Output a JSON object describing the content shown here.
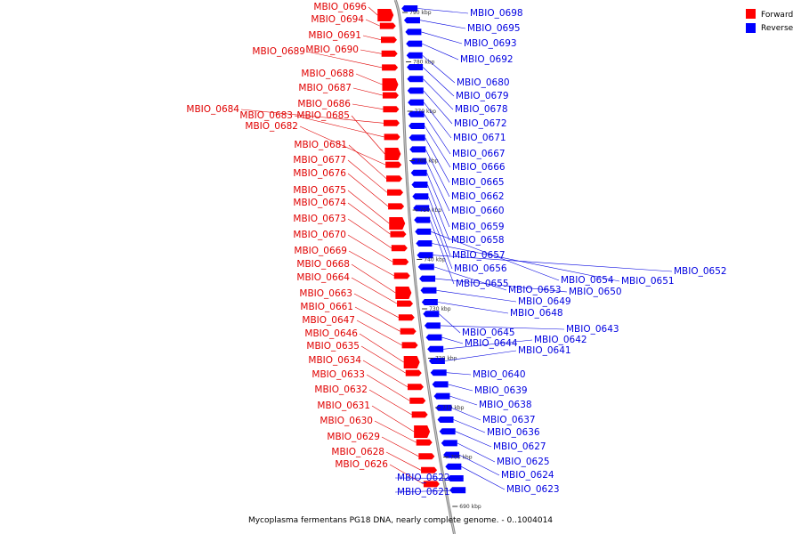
{
  "caption": "Mycoplasma fermentans PG18 DNA, nearly complete genome. - 0..1004014",
  "legend": [
    {
      "label": "Forward",
      "color": "#ff0000"
    },
    {
      "label": "Reverse",
      "color": "#0000ff"
    }
  ],
  "colors": {
    "forward": "#ff0000",
    "reverse": "#0000ff",
    "forward_text": "#e00000",
    "reverse_text": "#0000e0",
    "backbone": "#888888"
  },
  "ticks": [
    "690 kbp",
    "700 kbp",
    "710 kbp",
    "720 kbp",
    "730 kbp",
    "740 kbp",
    "750 kbp",
    "760 kbp",
    "770 kbp",
    "780 kbp",
    "790 kbp"
  ],
  "forward_genes": [
    "MBIO_0696",
    "MBIO_0694",
    "MBIO_0691",
    "MBIO_0690",
    "MBIO_0689",
    "MBIO_0688",
    "MBIO_0687",
    "MBIO_0686",
    "MBIO_0684",
    "MBIO_0683",
    "MBIO_0685",
    "MBIO_0682",
    "MBIO_0681",
    "MBIO_0677",
    "MBIO_0676",
    "MBIO_0675",
    "MBIO_0674",
    "MBIO_0673",
    "MBIO_0670",
    "MBIO_0669",
    "MBIO_0668",
    "MBIO_0664",
    "MBIO_0663",
    "MBIO_0661",
    "MBIO_0647",
    "MBIO_0646",
    "MBIO_0635",
    "MBIO_0634",
    "MBIO_0633",
    "MBIO_0632",
    "MBIO_0631",
    "MBIO_0630",
    "MBIO_0629",
    "MBIO_0628",
    "MBIO_0626"
  ],
  "reverse_genes": [
    "MBIO_0698",
    "MBIO_0695",
    "MBIO_0693",
    "MBIO_0692",
    "MBIO_0680",
    "MBIO_0679",
    "MBIO_0678",
    "MBIO_0672",
    "MBIO_0671",
    "MBIO_0667",
    "MBIO_0666",
    "MBIO_0665",
    "MBIO_0662",
    "MBIO_0660",
    "MBIO_0659",
    "MBIO_0658",
    "MBIO_0657",
    "MBIO_0656",
    "MBIO_0655",
    "MBIO_0654",
    "MBIO_0651",
    "MBIO_0652",
    "MBIO_0653",
    "MBIO_0650",
    "MBIO_0649",
    "MBIO_0648",
    "MBIO_0645",
    "MBIO_0643",
    "MBIO_0644",
    "MBIO_0642",
    "MBIO_0641",
    "MBIO_0640",
    "MBIO_0639",
    "MBIO_0638",
    "MBIO_0637",
    "MBIO_0636",
    "MBIO_0627",
    "MBIO_0625",
    "MBIO_0624",
    "MBIO_0623",
    "MBIO_0622",
    "MBIO_0621"
  ]
}
